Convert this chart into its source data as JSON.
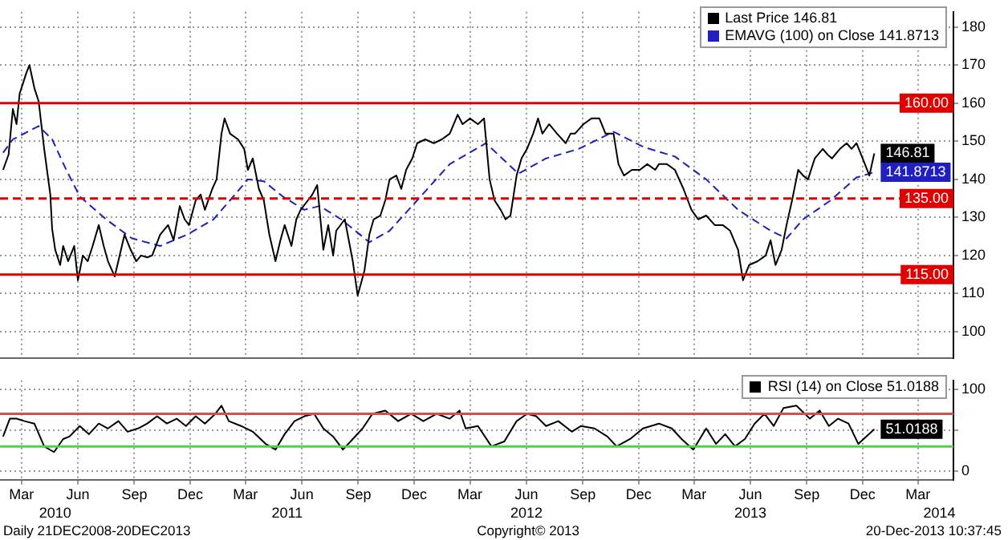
{
  "chart_data": [
    {
      "type": "line",
      "legend": "top right",
      "grid": true,
      "marker": "none",
      "tick_labels": "y",
      "xlim": [
        "2010-01-25",
        "2014-04-28"
      ],
      "xticks": [
        {
          "value": "2010-03-01",
          "label": null
        },
        {
          "value": "2010-06-01",
          "label": null
        },
        {
          "value": "2010-09-01",
          "label": null
        },
        {
          "value": "2010-12-01",
          "label": null
        },
        {
          "value": "2011-03-01",
          "label": null
        },
        {
          "value": "2011-06-01",
          "label": null
        },
        {
          "value": "2011-09-01",
          "label": null
        },
        {
          "value": "2011-12-01",
          "label": null
        },
        {
          "value": "2012-03-01",
          "label": null
        },
        {
          "value": "2012-06-01",
          "label": null
        },
        {
          "value": "2012-09-01",
          "label": null
        },
        {
          "value": "2012-12-01",
          "label": null
        },
        {
          "value": "2013-03-01",
          "label": null
        },
        {
          "value": "2013-06-01",
          "label": null
        },
        {
          "value": "2013-09-01",
          "label": null
        },
        {
          "value": "2013-12-01",
          "label": null
        },
        {
          "value": "2014-03-01",
          "label": null
        }
      ],
      "ylim": [
        93,
        184
      ],
      "yticks": [
        100,
        110,
        120,
        130,
        140,
        150,
        160,
        170,
        180
      ],
      "ref_lines": [
        {
          "axis": "y",
          "value": 160,
          "label": "160.00",
          "color": "#e00000",
          "line_style": "solid"
        },
        {
          "axis": "y",
          "value": 135,
          "label": "135.00",
          "color": "#e00000",
          "line_style": "dashed"
        },
        {
          "axis": "y",
          "value": 115,
          "label": "115.00",
          "color": "#e00000",
          "line_style": "solid"
        }
      ],
      "annotations": [
        {
          "text": "146.81",
          "x": "2013-12-20",
          "y": 146.81
        },
        {
          "text": "141.8713",
          "x": "2013-12-20",
          "y": 141.8713
        }
      ],
      "series": [
        {
          "name": "Last Price 146.81",
          "color": "#000000",
          "line_style": "solid",
          "x": [
            "2010-01-30",
            "2010-02-08",
            "2010-02-15",
            "2010-02-21",
            "2010-02-26",
            "2010-03-09",
            "2010-03-14",
            "2010-03-22",
            "2010-03-29",
            "2010-04-07",
            "2010-04-17",
            "2010-04-20",
            "2010-04-25",
            "2010-05-03",
            "2010-05-08",
            "2010-05-16",
            "2010-05-26",
            "2010-06-01",
            "2010-06-09",
            "2010-06-17",
            "2010-06-25",
            "2010-07-05",
            "2010-07-13",
            "2010-07-20",
            "2010-07-31",
            "2010-08-08",
            "2010-08-16",
            "2010-08-26",
            "2010-09-04",
            "2010-09-12",
            "2010-09-22",
            "2010-09-30",
            "2010-10-13",
            "2010-10-26",
            "2010-11-04",
            "2010-11-14",
            "2010-11-22",
            "2010-11-29",
            "2010-12-10",
            "2010-12-18",
            "2010-12-25",
            "2011-01-06",
            "2011-01-13",
            "2011-01-21",
            "2011-01-26",
            "2011-02-04",
            "2011-02-17",
            "2011-02-27",
            "2011-03-05",
            "2011-03-13",
            "2011-03-23",
            "2011-03-31",
            "2011-04-09",
            "2011-04-19",
            "2011-04-27",
            "2011-05-04",
            "2011-05-15",
            "2011-05-23",
            "2011-05-30",
            "2011-06-11",
            "2011-06-18",
            "2011-06-26",
            "2011-07-06",
            "2011-07-14",
            "2011-07-22",
            "2011-07-27",
            "2011-08-10",
            "2011-08-23",
            "2011-08-31",
            "2011-09-11",
            "2011-09-19",
            "2011-09-26",
            "2011-10-07",
            "2011-10-15",
            "2011-10-22",
            "2011-11-02",
            "2011-11-10",
            "2011-11-18",
            "2011-11-28",
            "2011-12-06",
            "2011-12-19",
            "2012-01-02",
            "2012-01-15",
            "2012-01-28",
            "2012-02-10",
            "2012-02-18",
            "2012-03-01",
            "2012-03-14",
            "2012-03-24",
            "2012-04-02",
            "2012-04-10",
            "2012-04-20",
            "2012-04-28",
            "2012-05-06",
            "2012-05-16",
            "2012-05-24",
            "2012-06-02",
            "2012-06-12",
            "2012-06-20",
            "2012-06-27",
            "2012-07-08",
            "2012-07-21",
            "2012-08-04",
            "2012-08-12",
            "2012-08-19",
            "2012-09-02",
            "2012-09-15",
            "2012-09-28",
            "2012-10-08",
            "2012-10-21",
            "2012-10-29",
            "2012-11-07",
            "2012-11-20",
            "2012-12-03",
            "2012-12-15",
            "2012-12-28",
            "2013-01-03",
            "2013-01-16",
            "2013-01-29",
            "2013-02-12",
            "2013-02-25",
            "2013-03-08",
            "2013-03-21",
            "2013-04-04",
            "2013-04-17",
            "2013-04-29",
            "2013-05-12",
            "2013-05-20",
            "2013-05-30",
            "2013-06-13",
            "2013-06-26",
            "2013-07-04",
            "2013-07-12",
            "2013-07-22",
            "2013-07-30",
            "2013-08-08",
            "2013-08-18",
            "2013-08-26",
            "2013-09-03",
            "2013-09-14",
            "2013-09-27",
            "2013-10-05",
            "2013-10-12",
            "2013-10-25",
            "2013-11-05",
            "2013-11-13",
            "2013-11-21",
            "2013-12-01",
            "2013-12-12",
            "2013-12-20"
          ],
          "values": [
            142.5,
            146.5,
            158.5,
            154.5,
            162.5,
            168,
            170,
            164,
            160.5,
            148,
            136,
            127,
            121.5,
            117.5,
            122.5,
            118.5,
            122.5,
            113.5,
            120,
            118.5,
            122.5,
            128,
            122.5,
            118.5,
            114.5,
            120,
            125.5,
            121.5,
            118.5,
            120,
            119.5,
            120,
            125.5,
            128,
            124,
            133,
            129.5,
            128,
            134.5,
            136,
            132,
            137.5,
            140,
            152,
            156,
            152,
            150.5,
            148,
            142.5,
            145.5,
            137.5,
            134.5,
            125.5,
            118.5,
            124,
            128,
            122.5,
            129.5,
            132,
            134.5,
            136,
            138.5,
            121.5,
            128,
            120,
            126.5,
            129.5,
            118.5,
            109.5,
            116,
            125.5,
            129.5,
            130.5,
            134.5,
            140,
            141,
            137.5,
            142.5,
            145.5,
            149.5,
            150.5,
            149.5,
            150.5,
            152,
            157,
            154.5,
            156,
            154.5,
            156,
            140,
            134.5,
            132,
            129.5,
            130.5,
            141,
            145.5,
            148,
            152,
            156,
            152,
            154.5,
            152,
            149.5,
            152,
            152,
            154.5,
            156,
            156,
            152,
            152,
            144,
            141,
            142.5,
            142.5,
            144,
            142.5,
            144,
            144,
            142.5,
            137.5,
            132,
            129.5,
            130.5,
            128,
            128,
            126.5,
            121.5,
            113.5,
            117.5,
            118.5,
            120,
            124,
            117.5,
            121.5,
            128,
            134.5,
            142.5,
            141,
            140,
            145.5,
            148,
            146.5,
            145.5,
            148,
            149.5,
            148,
            149.5,
            145.5,
            141,
            146.81
          ]
        },
        {
          "name": "EMAVG (100) on Close 141.8713",
          "color": "#2020c0",
          "line_style": "dashed",
          "x": [
            "2010-01-30",
            "2010-02-15",
            "2010-03-29",
            "2010-04-20",
            "2010-05-13",
            "2010-06-04",
            "2010-07-17",
            "2010-08-28",
            "2010-10-13",
            "2010-11-26",
            "2011-01-08",
            "2011-02-04",
            "2011-03-05",
            "2011-03-31",
            "2011-05-01",
            "2011-06-05",
            "2011-06-30",
            "2011-08-04",
            "2011-09-19",
            "2011-10-22",
            "2011-12-06",
            "2012-01-28",
            "2012-03-27",
            "2012-05-19",
            "2012-07-03",
            "2012-08-25",
            "2012-10-21",
            "2012-12-09",
            "2013-01-29",
            "2013-03-21",
            "2013-05-12",
            "2013-07-04",
            "2013-07-30",
            "2013-08-26",
            "2013-10-10",
            "2013-11-21",
            "2013-12-20"
          ],
          "values": [
            147,
            150.5,
            154,
            150.5,
            142.5,
            135.5,
            129.5,
            124.5,
            122.5,
            125.5,
            129.5,
            134.5,
            140,
            139.5,
            135.5,
            132,
            133,
            129.5,
            123.5,
            126.5,
            134.5,
            144,
            149.5,
            141.5,
            145.5,
            148,
            152.5,
            148.5,
            146,
            140,
            132,
            126.5,
            124.5,
            129.5,
            134.5,
            140.5,
            141.8713
          ]
        }
      ]
    },
    {
      "type": "line",
      "legend": "top right",
      "grid": true,
      "marker": "none",
      "xlim": [
        "2010-01-25",
        "2014-04-28"
      ],
      "xticks": [
        {
          "value": "2010-03-01",
          "label": "Mar"
        },
        {
          "value": "2010-06-01",
          "label": "Jun"
        },
        {
          "value": "2010-09-01",
          "label": "Sep"
        },
        {
          "value": "2010-12-01",
          "label": "Dec"
        },
        {
          "value": "2011-03-01",
          "label": "Mar"
        },
        {
          "value": "2011-06-01",
          "label": "Jun"
        },
        {
          "value": "2011-09-01",
          "label": "Sep"
        },
        {
          "value": "2011-12-01",
          "label": "Dec"
        },
        {
          "value": "2012-03-01",
          "label": "Mar"
        },
        {
          "value": "2012-06-01",
          "label": "Jun"
        },
        {
          "value": "2012-09-01",
          "label": "Sep"
        },
        {
          "value": "2012-12-01",
          "label": "Dec"
        },
        {
          "value": "2013-03-01",
          "label": "Mar"
        },
        {
          "value": "2013-06-01",
          "label": "Jun"
        },
        {
          "value": "2013-09-01",
          "label": "Sep"
        },
        {
          "value": "2013-12-01",
          "label": "Dec"
        },
        {
          "value": "2014-03-01",
          "label": "Mar"
        }
      ],
      "x2lim": [
        "2010-01-25",
        "2014-04-28"
      ],
      "x2ticks": [
        {
          "value": "2010-04-25",
          "label": "2010"
        },
        {
          "value": "2011-05-08",
          "label": "2011"
        },
        {
          "value": "2012-06-01",
          "label": "2012"
        },
        {
          "value": "2013-06-01",
          "label": "2013"
        },
        {
          "value": "2014-04-05",
          "label": "2014"
        }
      ],
      "ylim": [
        -11,
        111
      ],
      "yticks": [
        0,
        {
          "value": 50,
          "label": null
        },
        100
      ],
      "ref_lines": [
        {
          "axis": "y",
          "value": 70,
          "color": "#d05050"
        },
        {
          "axis": "y",
          "value": 30,
          "color": "#50d050"
        }
      ],
      "annotations": [
        {
          "text": "51.0188",
          "x": "2013-12-20",
          "y": 51.0188
        },
        "Daily 21DEC2008-20DEC2013",
        "Copyright© 2013",
        "20-Dec-2013 10:37:45"
      ],
      "series": [
        {
          "name": "RSI (14) on Close 51.0188",
          "color": "#000000",
          "line_style": "solid",
          "x": [
            "2010-01-30",
            "2010-02-10",
            "2010-02-21",
            "2010-03-06",
            "2010-03-22",
            "2010-04-07",
            "2010-04-23",
            "2010-05-08",
            "2010-05-18",
            "2010-06-04",
            "2010-06-19",
            "2010-07-05",
            "2010-07-20",
            "2010-08-06",
            "2010-08-21",
            "2010-09-07",
            "2010-09-22",
            "2010-10-08",
            "2010-10-24",
            "2010-11-09",
            "2010-11-24",
            "2010-12-10",
            "2010-12-25",
            "2011-01-11",
            "2011-01-21",
            "2011-02-02",
            "2011-02-22",
            "2011-03-13",
            "2011-04-03",
            "2011-04-19",
            "2011-05-04",
            "2011-05-20",
            "2011-06-05",
            "2011-06-21",
            "2011-07-06",
            "2011-07-22",
            "2011-08-07",
            "2011-08-23",
            "2011-09-08",
            "2011-09-24",
            "2011-10-15",
            "2011-11-05",
            "2011-11-26",
            "2011-12-16",
            "2012-01-07",
            "2012-01-28",
            "2012-02-13",
            "2012-02-23",
            "2012-03-14",
            "2012-04-05",
            "2012-04-26",
            "2012-05-16",
            "2012-06-02",
            "2012-06-17",
            "2012-07-03",
            "2012-07-23",
            "2012-08-14",
            "2012-08-29",
            "2012-09-20",
            "2012-10-11",
            "2012-10-26",
            "2012-11-17",
            "2012-12-08",
            "2013-01-03",
            "2013-01-24",
            "2013-02-09",
            "2013-02-28",
            "2013-03-21",
            "2013-04-06",
            "2013-04-21",
            "2013-05-07",
            "2013-05-23",
            "2013-06-08",
            "2013-06-24",
            "2013-07-09",
            "2013-07-25",
            "2013-08-15",
            "2013-09-06",
            "2013-09-22",
            "2013-10-07",
            "2013-10-22",
            "2013-11-08",
            "2013-11-24",
            "2013-12-20"
          ],
          "values": [
            42,
            64,
            64,
            61,
            58,
            30,
            23,
            39,
            42,
            55,
            45,
            58,
            52,
            61,
            48,
            52,
            58,
            67,
            58,
            64,
            55,
            67,
            58,
            70,
            80,
            61,
            55,
            48,
            33,
            26,
            45,
            61,
            67,
            70,
            52,
            42,
            26,
            39,
            52,
            70,
            74,
            61,
            70,
            61,
            70,
            64,
            74,
            52,
            55,
            30,
            36,
            61,
            70,
            67,
            55,
            61,
            48,
            55,
            52,
            42,
            30,
            39,
            52,
            58,
            52,
            39,
            26,
            52,
            33,
            45,
            30,
            39,
            58,
            70,
            55,
            77,
            80,
            64,
            74,
            55,
            64,
            58,
            33,
            51.0188
          ]
        }
      ]
    }
  ]
}
